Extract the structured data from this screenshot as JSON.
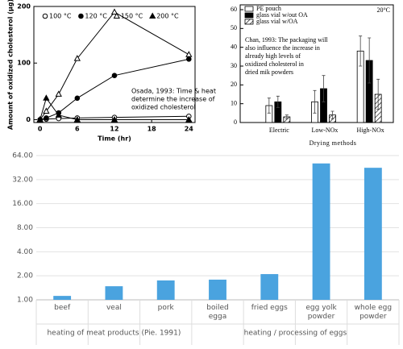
{
  "chart_data": [
    {
      "type": "line",
      "xlabel": "Time (hr)",
      "ylabel": "Amount of oxidized cholesterol (μg)",
      "x": [
        0,
        1,
        3,
        6,
        12,
        24
      ],
      "xlim": [
        -1,
        25
      ],
      "xticks": [
        0,
        6,
        12,
        18,
        24
      ],
      "ylim": [
        -5,
        200
      ],
      "yticks": [
        0,
        100,
        200
      ],
      "annotation": [
        "Osada, 1993: Time & heat",
        "determine the increase of",
        "oxidized cholesterol"
      ],
      "series": [
        {
          "name": "100 °C",
          "color": "#000000",
          "marker": "circle",
          "filled": false,
          "values": [
            0,
            1,
            2,
            3,
            4,
            6
          ]
        },
        {
          "name": "120 °C",
          "color": "#000000",
          "marker": "circle",
          "filled": true,
          "values": [
            0,
            3,
            12,
            38,
            78,
            107
          ]
        },
        {
          "name": "150 °C",
          "color": "#000000",
          "marker": "triangle",
          "filled": false,
          "values": [
            0,
            15,
            45,
            108,
            190,
            115
          ]
        },
        {
          "name": "200 °C",
          "color": "#000000",
          "marker": "triangle",
          "filled": true,
          "values": [
            0,
            38,
            8,
            0,
            0,
            0
          ]
        }
      ]
    },
    {
      "type": "bar",
      "xlabel": "Drying methods",
      "corner_label": "20°C",
      "categories": [
        "Electric",
        "Low-NOx",
        "High-NOx"
      ],
      "ylim": [
        0,
        60
      ],
      "yticks": [
        0,
        10,
        20,
        30,
        40,
        50,
        60
      ],
      "annotation": [
        "Chan, 1993: The packaging will",
        "also influence the increase in",
        "already high levels of",
        "oxidized cholesterol in",
        "dried mik powders"
      ],
      "series": [
        {
          "name": "PE pouch",
          "color": "#ffffff",
          "hatch": false,
          "values": [
            9,
            11,
            38
          ],
          "errors": [
            4,
            6,
            8
          ]
        },
        {
          "name": "glass vial w/out OA",
          "color": "#000000",
          "hatch": false,
          "values": [
            11,
            18,
            33
          ],
          "errors": [
            3,
            7,
            12
          ]
        },
        {
          "name": "glass vial w/OA",
          "color": "#ffffff",
          "hatch": true,
          "values": [
            3,
            4,
            15
          ],
          "errors": [
            1,
            2,
            8
          ]
        }
      ]
    },
    {
      "type": "bar",
      "log_y": true,
      "grid": true,
      "color": "#4aa3df",
      "categories": [
        "beef",
        "veal",
        "pork",
        "boiled egga",
        "fried eggs",
        "egg yolk powder",
        "whole egg powder"
      ],
      "values": [
        1.12,
        1.48,
        1.75,
        1.79,
        2.1,
        51,
        45
      ],
      "ylim": [
        1,
        64
      ],
      "yticks": [
        {
          "value": 1,
          "label": "1.00"
        },
        {
          "value": 2,
          "label": "2.00"
        },
        {
          "value": 4,
          "label": "4.00"
        },
        {
          "value": 8,
          "label": "8.00"
        },
        {
          "value": 16,
          "label": "16.00"
        },
        {
          "value": 32,
          "label": "32.00"
        },
        {
          "value": 64,
          "label": "64.00"
        }
      ],
      "groups": [
        {
          "label": "heating of meat products (Pie. 1991)",
          "categories": [
            "beef",
            "veal",
            "pork"
          ]
        },
        {
          "label": "heating / processing of eggs",
          "categories": [
            "boiled egga",
            "fried eggs",
            "egg yolk powder",
            "whole egg powder"
          ]
        }
      ]
    }
  ]
}
